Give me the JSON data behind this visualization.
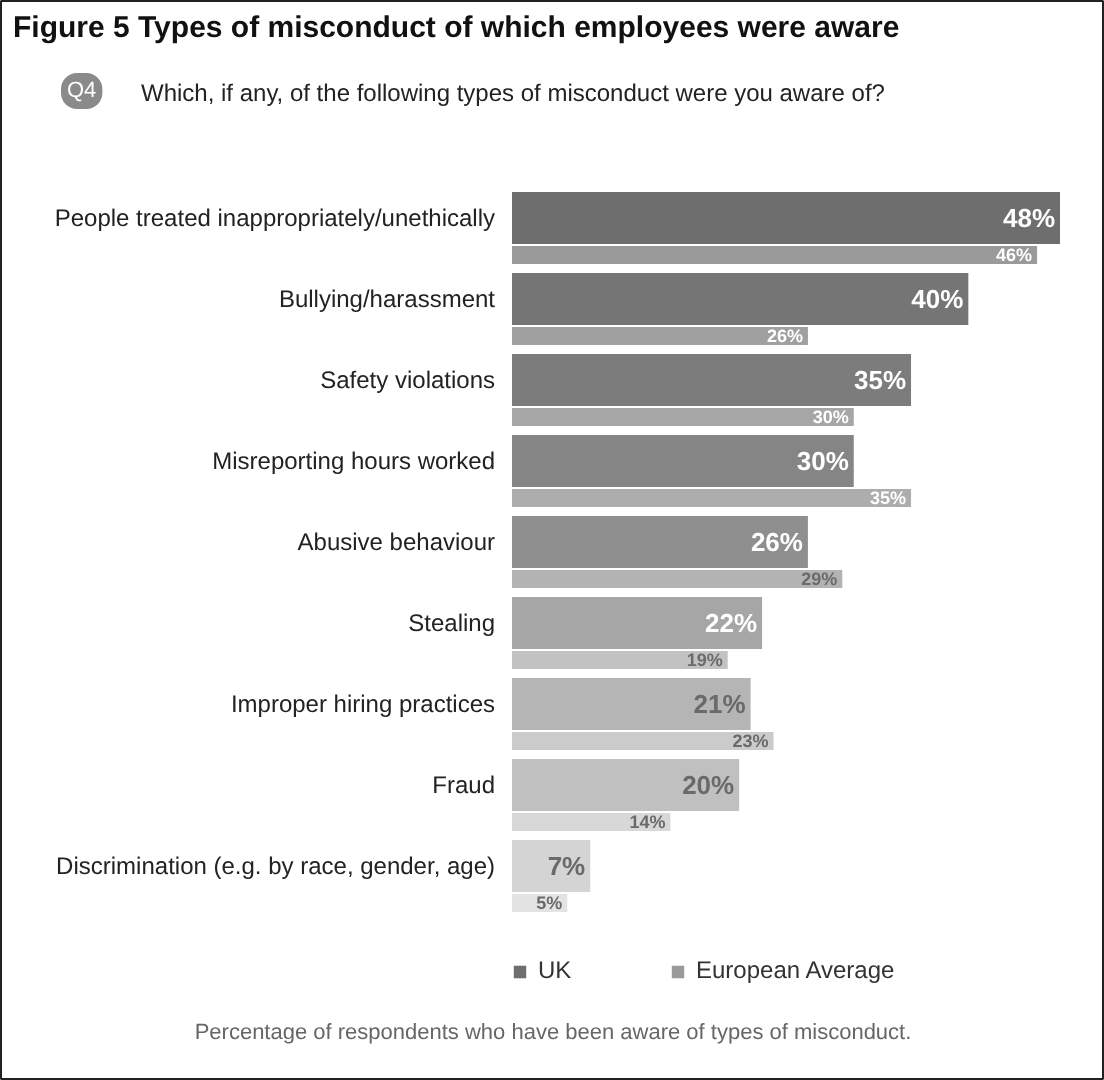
{
  "chart_data": {
    "type": "bar",
    "orientation": "horizontal",
    "title": "Figure 5  Types of misconduct of which employees were aware",
    "subtitle": "Which, if any, of the following types of misconduct were you aware of?",
    "categories": [
      "People treated inappropriately/unethically",
      "Bullying/harassment",
      "Safety violations",
      "Misreporting hours worked",
      "Abusive behaviour",
      "Stealing",
      "Improper hiring practices",
      "Fraud",
      "Discrimination (e.g. by race, gender, age)"
    ],
    "series": [
      {
        "name": "UK",
        "values": [
          48,
          40,
          35,
          30,
          26,
          22,
          21,
          20,
          7
        ],
        "value_labels": [
          "48%",
          "40%",
          "35%",
          "30%",
          "26%",
          "22%",
          "21%",
          "20%",
          "7%"
        ],
        "colors": [
          "#6e6e6e",
          "#757575",
          "#7c7c7c",
          "#858585",
          "#8f8f8f",
          "#a6a6a6",
          "#b5b5b5",
          "#c0c0c0",
          "#d4d4d4"
        ]
      },
      {
        "name": "European Average",
        "values": [
          46,
          26,
          30,
          35,
          29,
          19,
          23,
          14,
          5
        ],
        "value_labels": [
          "46%",
          "26%",
          "30%",
          "35%",
          "29%",
          "19%",
          "23%",
          "14%",
          "5%"
        ],
        "colors": [
          "#9a9a9a",
          "#a0a0a0",
          "#a6a6a6",
          "#adadad",
          "#b3b3b3",
          "#c2c2c2",
          "#cbcbcb",
          "#d8d8d8",
          "#e3e3e3"
        ]
      }
    ],
    "legend": "bottom",
    "annotations": [
      "Q4",
      "Percentage of respondents who have been aware of types of misconduct."
    ]
  }
}
